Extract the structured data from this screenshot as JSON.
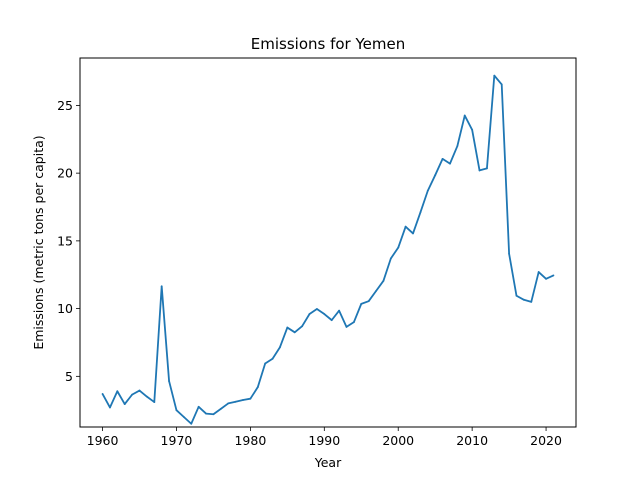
{
  "chart_data": {
    "type": "line",
    "title": "Emissions for Yemen",
    "xlabel": "Year",
    "ylabel": "Emissions (metric tons per capita)",
    "xlim": [
      1956.95,
      2024.05
    ],
    "ylim": [
      1.26,
      28.5
    ],
    "xticks": [
      1960,
      1970,
      1980,
      1990,
      2000,
      2010,
      2020
    ],
    "yticks": [
      5,
      10,
      15,
      20,
      25
    ],
    "grid": false,
    "legend": "none",
    "series": [
      {
        "color": "#1f77b4",
        "x": [
          1960,
          1961,
          1962,
          1963,
          1964,
          1965,
          1966,
          1967,
          1968,
          1969,
          1970,
          1971,
          1972,
          1973,
          1974,
          1975,
          1976,
          1977,
          1978,
          1979,
          1980,
          1981,
          1982,
          1983,
          1984,
          1985,
          1986,
          1987,
          1988,
          1989,
          1990,
          1991,
          1992,
          1993,
          1994,
          1995,
          1996,
          1997,
          1998,
          1999,
          2000,
          2001,
          2002,
          2003,
          2004,
          2005,
          2006,
          2007,
          2008,
          2009,
          2010,
          2011,
          2012,
          2013,
          2014,
          2015,
          2016,
          2017,
          2018,
          2019,
          2020,
          2021
        ],
        "y": [
          3.7,
          2.7,
          3.9,
          2.95,
          3.65,
          3.95,
          3.5,
          3.1,
          11.65,
          4.65,
          2.5,
          2.0,
          1.5,
          2.75,
          2.25,
          2.2,
          2.6,
          3.0,
          3.12,
          3.25,
          3.35,
          4.2,
          5.95,
          6.3,
          7.15,
          8.6,
          8.25,
          8.7,
          9.6,
          9.97,
          9.6,
          9.15,
          9.85,
          8.65,
          9.0,
          10.35,
          10.55,
          11.3,
          12.05,
          13.7,
          14.5,
          16.05,
          15.55,
          17.1,
          18.7,
          19.85,
          21.05,
          20.7,
          22.0,
          24.25,
          23.2,
          20.2,
          20.35,
          27.2,
          26.55,
          14.05,
          10.95,
          10.65,
          10.5,
          12.7,
          12.2,
          12.45
        ]
      }
    ]
  }
}
